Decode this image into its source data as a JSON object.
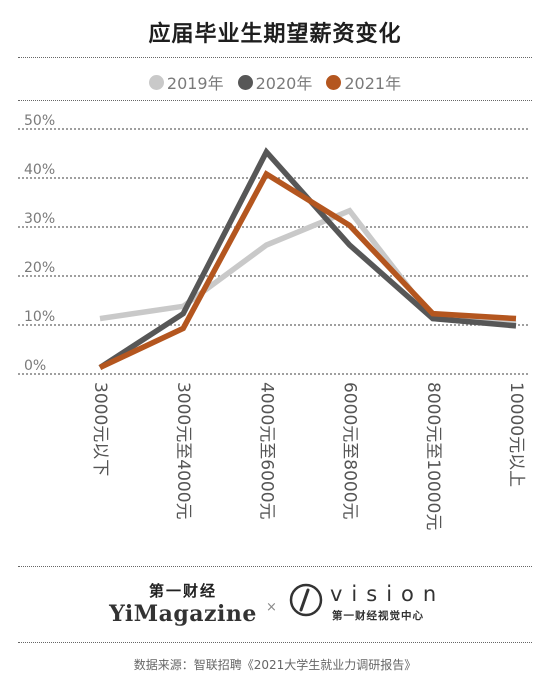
{
  "title": "应届毕业生期望薪资变化",
  "legend": [
    {
      "label": "2019年",
      "color": "#c9c9c9"
    },
    {
      "label": "2020年",
      "color": "#575757"
    },
    {
      "label": "2021年",
      "color": "#b4561f"
    }
  ],
  "chart_data": {
    "type": "line",
    "title": "应届毕业生期望薪资变化",
    "categories": [
      "3000元以下",
      "3000元至4000元",
      "4000元至6000元",
      "6000元至8000元",
      "8000元至10000元",
      "10000元以上"
    ],
    "yticks": [
      "0%",
      "10%",
      "20%",
      "30%",
      "40%",
      "50%"
    ],
    "ylim": [
      0,
      50
    ],
    "grid": true,
    "legend_position": "top",
    "series": [
      {
        "name": "2019年",
        "color": "#c9c9c9",
        "values": [
          10.5,
          13.0,
          25.5,
          32.5,
          10.5,
          9.5
        ]
      },
      {
        "name": "2020年",
        "color": "#575757",
        "values": [
          0.5,
          11.5,
          44.5,
          25.5,
          10.5,
          9.0
        ]
      },
      {
        "name": "2021年",
        "color": "#b4561f",
        "values": [
          0.5,
          8.5,
          40.0,
          29.5,
          11.5,
          10.5
        ]
      }
    ]
  },
  "footer": {
    "logo_cn": "第一财经",
    "logo_en": "YiMagazine",
    "cross": "×",
    "vision_word": "vision",
    "vision_sub": "第一财经视觉中心",
    "source": "数据来源：智联招聘《2021大学生就业力调研报告》"
  }
}
